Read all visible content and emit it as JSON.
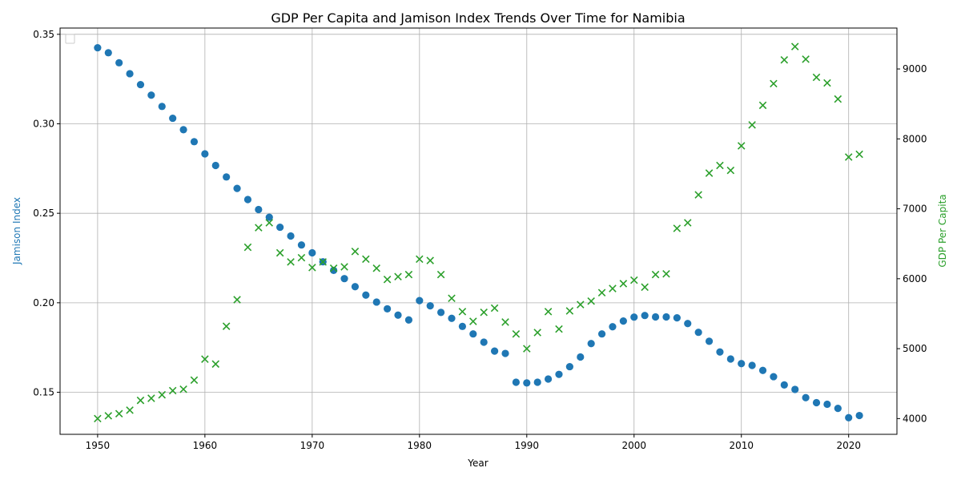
{
  "chart_data": {
    "type": "scatter",
    "title": "GDP Per Capita and Jamison Index Trends Over Time for Namibia",
    "xlabel": "Year",
    "ylabel_left": "Jamison Index",
    "ylabel_right": "GDP Per Capita",
    "xlim": [
      1946.5,
      2024.5
    ],
    "ylim_left": [
      0.1265,
      0.3535
    ],
    "ylim_right": [
      3775,
      9585
    ],
    "x_ticks": [
      1950,
      1960,
      1970,
      1980,
      1990,
      2000,
      2010,
      2020
    ],
    "y_ticks_left": [
      0.15,
      0.2,
      0.25,
      0.3,
      0.35
    ],
    "y_ticks_right": [
      4000,
      5000,
      6000,
      7000,
      8000,
      9000
    ],
    "grid": true,
    "legend": "upper-left (empty)",
    "colors": {
      "jamison": "#1f77b4",
      "gdp": "#2ca02c"
    },
    "series": [
      {
        "axis": "left",
        "marker": "circle",
        "points": [
          [
            1950,
            0.3425
          ],
          [
            1951,
            0.3397
          ],
          [
            1952,
            0.3341
          ],
          [
            1953,
            0.328
          ],
          [
            1954,
            0.3219
          ],
          [
            1955,
            0.316
          ],
          [
            1956,
            0.3097
          ],
          [
            1957,
            0.3031
          ],
          [
            1958,
            0.2967
          ],
          [
            1959,
            0.29
          ],
          [
            1960,
            0.2832
          ],
          [
            1961,
            0.2767
          ],
          [
            1962,
            0.2703
          ],
          [
            1963,
            0.2639
          ],
          [
            1964,
            0.2577
          ],
          [
            1965,
            0.2521
          ],
          [
            1966,
            0.2478
          ],
          [
            1967,
            0.2422
          ],
          [
            1968,
            0.2373
          ],
          [
            1969,
            0.2323
          ],
          [
            1970,
            0.2279
          ],
          [
            1971,
            0.2229
          ],
          [
            1972,
            0.2181
          ],
          [
            1973,
            0.2135
          ],
          [
            1974,
            0.209
          ],
          [
            1975,
            0.2043
          ],
          [
            1976,
            0.2004
          ],
          [
            1977,
            0.1966
          ],
          [
            1978,
            0.1931
          ],
          [
            1979,
            0.1904
          ],
          [
            1980,
            0.2012
          ],
          [
            1981,
            0.1983
          ],
          [
            1982,
            0.1946
          ],
          [
            1983,
            0.1913
          ],
          [
            1984,
            0.1868
          ],
          [
            1985,
            0.1826
          ],
          [
            1986,
            0.178
          ],
          [
            1987,
            0.173
          ],
          [
            1988,
            0.1717
          ],
          [
            1989,
            0.1556
          ],
          [
            1990,
            0.1552
          ],
          [
            1991,
            0.1556
          ],
          [
            1992,
            0.1574
          ],
          [
            1993,
            0.16
          ],
          [
            1994,
            0.1643
          ],
          [
            1995,
            0.1697
          ],
          [
            1996,
            0.1772
          ],
          [
            1997,
            0.1826
          ],
          [
            1998,
            0.1866
          ],
          [
            1999,
            0.1898
          ],
          [
            2000,
            0.192
          ],
          [
            2001,
            0.1929
          ],
          [
            2002,
            0.1921
          ],
          [
            2003,
            0.1921
          ],
          [
            2004,
            0.1916
          ],
          [
            2005,
            0.1884
          ],
          [
            2006,
            0.1835
          ],
          [
            2007,
            0.1785
          ],
          [
            2008,
            0.1725
          ],
          [
            2009,
            0.1686
          ],
          [
            2010,
            0.166
          ],
          [
            2011,
            0.165
          ],
          [
            2012,
            0.1622
          ],
          [
            2013,
            0.1587
          ],
          [
            2014,
            0.1541
          ],
          [
            2015,
            0.1516
          ],
          [
            2016,
            0.147
          ],
          [
            2017,
            0.1442
          ],
          [
            2018,
            0.1433
          ],
          [
            2019,
            0.141
          ],
          [
            2020,
            0.1358
          ],
          [
            2021,
            0.137
          ]
        ]
      },
      {
        "axis": "right",
        "marker": "x",
        "points": [
          [
            1950,
            4000
          ],
          [
            1951,
            4040
          ],
          [
            1952,
            4070
          ],
          [
            1953,
            4120
          ],
          [
            1954,
            4260
          ],
          [
            1955,
            4290
          ],
          [
            1956,
            4340
          ],
          [
            1957,
            4400
          ],
          [
            1958,
            4420
          ],
          [
            1959,
            4550
          ],
          [
            1960,
            4850
          ],
          [
            1961,
            4780
          ],
          [
            1962,
            5320
          ],
          [
            1963,
            5700
          ],
          [
            1964,
            6450
          ],
          [
            1965,
            6730
          ],
          [
            1966,
            6800
          ],
          [
            1967,
            6370
          ],
          [
            1968,
            6240
          ],
          [
            1969,
            6300
          ],
          [
            1970,
            6160
          ],
          [
            1971,
            6240
          ],
          [
            1972,
            6150
          ],
          [
            1973,
            6170
          ],
          [
            1974,
            6390
          ],
          [
            1975,
            6280
          ],
          [
            1976,
            6150
          ],
          [
            1977,
            5990
          ],
          [
            1978,
            6030
          ],
          [
            1979,
            6060
          ],
          [
            1980,
            6280
          ],
          [
            1981,
            6260
          ],
          [
            1982,
            6060
          ],
          [
            1983,
            5720
          ],
          [
            1984,
            5530
          ],
          [
            1985,
            5390
          ],
          [
            1986,
            5520
          ],
          [
            1987,
            5580
          ],
          [
            1988,
            5380
          ],
          [
            1989,
            5210
          ],
          [
            1990,
            5000
          ],
          [
            1991,
            5230
          ],
          [
            1992,
            5530
          ],
          [
            1993,
            5280
          ],
          [
            1994,
            5540
          ],
          [
            1995,
            5630
          ],
          [
            1996,
            5680
          ],
          [
            1997,
            5800
          ],
          [
            1998,
            5860
          ],
          [
            1999,
            5930
          ],
          [
            2000,
            5980
          ],
          [
            2001,
            5880
          ],
          [
            2002,
            6060
          ],
          [
            2003,
            6070
          ],
          [
            2004,
            6720
          ],
          [
            2005,
            6800
          ],
          [
            2006,
            7200
          ],
          [
            2007,
            7510
          ],
          [
            2008,
            7620
          ],
          [
            2009,
            7550
          ],
          [
            2010,
            7900
          ],
          [
            2011,
            8200
          ],
          [
            2012,
            8480
          ],
          [
            2013,
            8790
          ],
          [
            2014,
            9130
          ],
          [
            2015,
            9320
          ],
          [
            2016,
            9140
          ],
          [
            2017,
            8880
          ],
          [
            2018,
            8800
          ],
          [
            2019,
            8570
          ],
          [
            2020,
            7740
          ],
          [
            2021,
            7780
          ]
        ]
      }
    ]
  }
}
